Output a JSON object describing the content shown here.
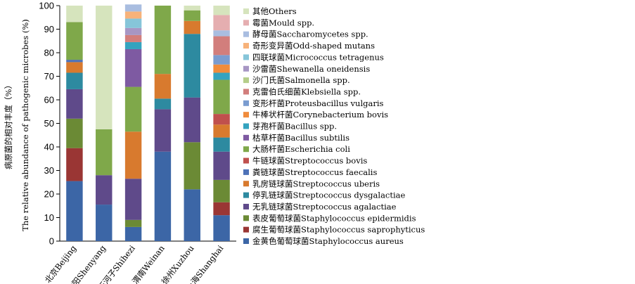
{
  "chart_data": {
    "type": "bar",
    "stacked": true,
    "ylabel_cn": "病原菌的相对丰度（%）",
    "ylabel_en": "The relative abundance of pathogenic microbes (%)",
    "ylim": [
      0,
      100
    ],
    "yticks": [
      "0",
      "10",
      "20",
      "30",
      "40",
      "50",
      "60",
      "70",
      "80",
      "90",
      "100"
    ],
    "grid": false,
    "legend_position": "right",
    "categories": [
      "北京Beijing",
      "沈阳Shenyang",
      "石河子Shihezi",
      "渭南Weinan",
      "徐州Xuzhou",
      "上海Shanghai"
    ],
    "series": [
      {
        "name": "金黄色葡萄球菌Staphylococcus aureus",
        "color": "#3c66a6",
        "values": [
          25.5,
          15.5,
          6,
          38,
          22,
          11
        ]
      },
      {
        "name": "腐生葡萄球菌Staphylococcus saprophyticus",
        "color": "#9a3634",
        "values": [
          14,
          0,
          0,
          0,
          0,
          5.5
        ]
      },
      {
        "name": "表皮葡萄球菌Staphylococcus epidermidis",
        "color": "#6b8a35",
        "values": [
          12.5,
          0,
          3,
          0,
          20,
          9.5
        ]
      },
      {
        "name": "无乳链球菌Streptococcus agalactiae",
        "color": "#5f4a8a",
        "values": [
          12.5,
          12.5,
          17.5,
          18,
          19,
          12
        ]
      },
      {
        "name": "停乳链球菌Streptococcus dysgalactiae",
        "color": "#2d8aa0",
        "values": [
          7,
          0,
          0,
          4.5,
          27,
          6
        ]
      },
      {
        "name": "乳房链球菌Streptococcus uberis",
        "color": "#d87a2e",
        "values": [
          4.5,
          0,
          20,
          10.5,
          5.5,
          5.5
        ]
      },
      {
        "name": "粪链球菌Streptococcus faecalis",
        "color": "#4e72b8",
        "values": [
          1,
          0,
          0,
          0,
          0,
          0
        ]
      },
      {
        "name": "牛链球菌Streptococcus bovis",
        "color": "#c0504d",
        "values": [
          0,
          0,
          0,
          0,
          0,
          4.5
        ]
      },
      {
        "name": "大肠杆菌Escherichia coli",
        "color": "#7fa84a",
        "values": [
          16,
          19.5,
          19,
          29,
          4.5,
          14.5
        ]
      },
      {
        "name": "枯草杆菌Bacillus subtilis",
        "color": "#7e5aa2",
        "values": [
          0,
          0,
          16,
          0,
          0,
          0
        ]
      },
      {
        "name": "芽孢杆菌Bacillus spp.",
        "color": "#34a3bf",
        "values": [
          0,
          0,
          3,
          0,
          0,
          3
        ]
      },
      {
        "name": "牛棒状杆菌Corynebacterium bovis",
        "color": "#f08c3c",
        "values": [
          0,
          0,
          0,
          0,
          0,
          3.5
        ]
      },
      {
        "name": "变形杆菌Proteusbacillus vulgaris",
        "color": "#7a9cd0",
        "values": [
          0,
          0,
          0,
          0,
          0,
          4
        ]
      },
      {
        "name": "克雷伯氏细菌Klebsiella spp.",
        "color": "#d27e7c",
        "values": [
          0,
          0,
          3,
          0,
          0,
          8
        ]
      },
      {
        "name": "沙门氏菌Salmonella spp.",
        "color": "#b5ce8a",
        "values": [
          0,
          0,
          0,
          0,
          0,
          0
        ]
      },
      {
        "name": "沙雷菌Shewanella oneidensis",
        "color": "#a796c4",
        "values": [
          0,
          0,
          3,
          0,
          0,
          0
        ]
      },
      {
        "name": "四联球菌Micrococcus tetragenus",
        "color": "#86c5d9",
        "values": [
          0,
          0,
          4,
          0,
          0,
          0
        ]
      },
      {
        "name": "奇形变异菌Odd-shaped mutans",
        "color": "#f7b27a",
        "values": [
          0,
          0,
          3,
          0,
          0,
          0
        ]
      },
      {
        "name": "酵母菌Saccharomycetes spp.",
        "color": "#a9bde0",
        "values": [
          0,
          0,
          3,
          0,
          0,
          2.5
        ]
      },
      {
        "name": "霉菌Mould spp.",
        "color": "#e5aeb0",
        "values": [
          0,
          0,
          0,
          0,
          0,
          6.5
        ]
      },
      {
        "name": "其他Others",
        "color": "#d6e4bd",
        "values": [
          7,
          52.5,
          0,
          0,
          2,
          4
        ]
      }
    ]
  }
}
